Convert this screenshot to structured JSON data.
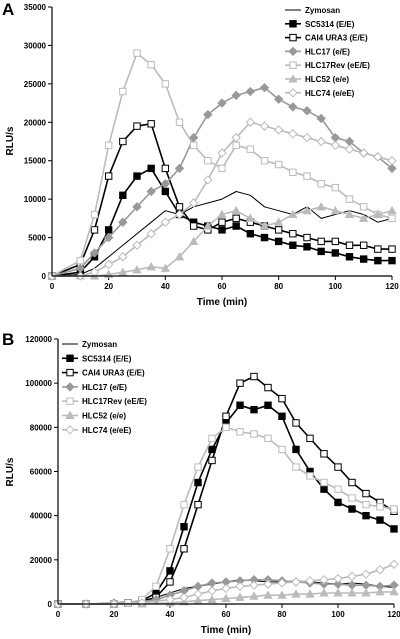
{
  "chart_data": [
    {
      "type": "line",
      "panel_label": "A",
      "xlabel": "Time (min)",
      "ylabel": "RLU/s",
      "xlim": [
        0,
        120
      ],
      "ylim": [
        0,
        35000
      ],
      "x_ticks": [
        0,
        20,
        40,
        60,
        80,
        100,
        120
      ],
      "y_ticks": [
        0,
        5000,
        10000,
        15000,
        20000,
        25000,
        30000,
        35000
      ],
      "x_tick_labels": [
        "0",
        "20",
        "40",
        "60",
        "80",
        "100",
        "120"
      ],
      "y_tick_labels": [
        "0",
        "5000",
        "10000",
        "15000",
        "20000",
        "25000",
        "30000",
        "35000"
      ],
      "grid": false,
      "legend_position": "top-right",
      "series": [
        {
          "name": "Zymosan",
          "color": "#000000",
          "marker": "none",
          "x": [
            0,
            10,
            15,
            20,
            25,
            30,
            35,
            40,
            45,
            50,
            55,
            60,
            65,
            70,
            75,
            80,
            85,
            90,
            95,
            100,
            105,
            110,
            115,
            120
          ],
          "y": [
            0,
            200,
            1000,
            2500,
            4000,
            5500,
            7000,
            8500,
            8000,
            9000,
            9500,
            10000,
            11000,
            10500,
            9000,
            8500,
            8000,
            9000,
            7500,
            8000,
            8500,
            8000,
            7000,
            7500
          ]
        },
        {
          "name": "SC5314 (E/E)",
          "color": "#000000",
          "marker": "filled-square",
          "x": [
            0,
            10,
            15,
            20,
            25,
            30,
            35,
            40,
            45,
            50,
            55,
            60,
            65,
            70,
            75,
            80,
            85,
            90,
            95,
            100,
            105,
            110,
            115,
            120
          ],
          "y": [
            0,
            500,
            2500,
            6000,
            10500,
            13000,
            14000,
            11000,
            8000,
            7000,
            6500,
            6000,
            6500,
            5500,
            5000,
            4500,
            4000,
            3800,
            3200,
            3000,
            2500,
            2200,
            2000,
            2000
          ]
        },
        {
          "name": "CAI4 URA3 (E/E)",
          "color": "#000000",
          "marker": "open-square",
          "x": [
            0,
            10,
            15,
            20,
            25,
            30,
            35,
            40,
            45,
            50,
            55,
            60,
            65,
            70,
            75,
            80,
            85,
            90,
            95,
            100,
            105,
            110,
            115,
            120
          ],
          "y": [
            0,
            1500,
            6000,
            13000,
            17500,
            19500,
            19800,
            14000,
            9000,
            6500,
            6000,
            7000,
            7500,
            7000,
            6500,
            6000,
            5500,
            5000,
            4500,
            4500,
            4000,
            4000,
            3500,
            3500
          ]
        },
        {
          "name": "HLC17 (e/E)",
          "color": "#999999",
          "marker": "filled-diamond",
          "x": [
            0,
            10,
            15,
            20,
            25,
            30,
            35,
            40,
            45,
            50,
            55,
            60,
            65,
            70,
            75,
            80,
            85,
            90,
            95,
            100,
            105,
            110,
            115,
            120
          ],
          "y": [
            0,
            1000,
            3000,
            5000,
            7000,
            9000,
            11000,
            12000,
            14000,
            18000,
            21000,
            22500,
            23500,
            24000,
            24500,
            23000,
            22000,
            21500,
            20500,
            18000,
            17500,
            16000,
            15500,
            14000
          ]
        },
        {
          "name": "HLC17Rev (eE/E)",
          "color": "#bbbbbb",
          "marker": "open-square",
          "x": [
            0,
            10,
            15,
            20,
            25,
            30,
            35,
            40,
            45,
            50,
            55,
            60,
            65,
            70,
            75,
            80,
            85,
            90,
            95,
            100,
            105,
            110,
            115,
            120
          ],
          "y": [
            0,
            2000,
            8000,
            17000,
            24000,
            29000,
            27500,
            25000,
            20000,
            17000,
            15000,
            14000,
            17000,
            16500,
            15000,
            14500,
            13500,
            13000,
            12000,
            11500,
            10000,
            9000,
            8000,
            7500
          ]
        },
        {
          "name": "HLC52 (e/e)",
          "color": "#bbbbbb",
          "marker": "filled-triangle",
          "x": [
            0,
            10,
            15,
            20,
            25,
            30,
            35,
            40,
            45,
            50,
            55,
            60,
            65,
            70,
            75,
            80,
            85,
            90,
            95,
            100,
            105,
            110,
            115,
            120
          ],
          "y": [
            0,
            0,
            0,
            200,
            500,
            800,
            1200,
            1000,
            2500,
            4500,
            6500,
            8000,
            8500,
            7500,
            6500,
            7000,
            8000,
            8500,
            9000,
            8500,
            8000,
            7500,
            8000,
            8500
          ]
        },
        {
          "name": "HLC74 (e/eE)",
          "color": "#bbbbbb",
          "marker": "open-diamond",
          "x": [
            0,
            10,
            15,
            20,
            25,
            30,
            35,
            40,
            45,
            50,
            55,
            60,
            65,
            70,
            75,
            80,
            85,
            90,
            95,
            100,
            105,
            110,
            115,
            120
          ],
          "y": [
            0,
            0,
            500,
            1500,
            2500,
            4000,
            5500,
            7000,
            8000,
            9500,
            12500,
            16000,
            18000,
            20000,
            19500,
            19000,
            18500,
            18000,
            17500,
            17000,
            16500,
            16000,
            15500,
            15000
          ]
        }
      ]
    },
    {
      "type": "line",
      "panel_label": "B",
      "xlabel": "Time (min)",
      "ylabel": "RLU/s",
      "xlim": [
        0,
        120
      ],
      "ylim": [
        0,
        120000
      ],
      "x_ticks": [
        0,
        20,
        40,
        60,
        80,
        100,
        120
      ],
      "y_ticks": [
        0,
        20000,
        40000,
        60000,
        80000,
        100000,
        120000
      ],
      "x_tick_labels": [
        "0",
        "20",
        "40",
        "60",
        "80",
        "100",
        "120"
      ],
      "y_tick_labels": [
        "0",
        "20000",
        "40000",
        "60000",
        "80000",
        "100000",
        "120000"
      ],
      "grid": false,
      "legend_position": "top-left",
      "series": [
        {
          "name": "Zymosan",
          "color": "#000000",
          "marker": "none",
          "x": [
            0,
            10,
            20,
            30,
            35,
            40,
            45,
            50,
            55,
            60,
            65,
            70,
            75,
            80,
            85,
            90,
            95,
            100,
            105,
            110,
            115,
            120
          ],
          "y": [
            0,
            0,
            500,
            1500,
            3000,
            5000,
            7000,
            8000,
            9000,
            10000,
            11000,
            10500,
            10000,
            10000,
            10500,
            10000,
            9500,
            9000,
            9500,
            9000,
            8000,
            7500
          ]
        },
        {
          "name": "SC5314 (E/E)",
          "color": "#000000",
          "marker": "filled-square",
          "x": [
            0,
            10,
            20,
            25,
            30,
            35,
            40,
            45,
            50,
            55,
            60,
            65,
            70,
            75,
            80,
            85,
            90,
            95,
            100,
            105,
            110,
            115,
            120
          ],
          "y": [
            0,
            0,
            0,
            500,
            1500,
            5000,
            15000,
            35000,
            55000,
            70000,
            82000,
            90000,
            88000,
            90000,
            85000,
            70000,
            60000,
            52000,
            46000,
            43000,
            40000,
            38000,
            34000
          ]
        },
        {
          "name": "CAI4 URA3 (E/E)",
          "color": "#000000",
          "marker": "open-square",
          "x": [
            0,
            10,
            20,
            25,
            30,
            35,
            40,
            45,
            50,
            55,
            60,
            65,
            70,
            75,
            80,
            85,
            90,
            95,
            100,
            105,
            110,
            115,
            120
          ],
          "y": [
            0,
            0,
            0,
            500,
            1000,
            3000,
            10000,
            25000,
            45000,
            65000,
            85000,
            100000,
            103000,
            98000,
            93000,
            82000,
            75000,
            68000,
            62000,
            55000,
            50000,
            46000,
            42000
          ]
        },
        {
          "name": "HLC17 (e/E)",
          "color": "#999999",
          "marker": "filled-diamond",
          "x": [
            0,
            10,
            20,
            30,
            35,
            40,
            45,
            50,
            55,
            60,
            65,
            70,
            75,
            80,
            85,
            90,
            95,
            100,
            105,
            110,
            115,
            120
          ],
          "y": [
            0,
            0,
            500,
            1000,
            2000,
            4000,
            6000,
            8000,
            9500,
            10000,
            10500,
            11000,
            11000,
            10500,
            10000,
            9500,
            9000,
            9000,
            8500,
            8500,
            8000,
            8500
          ]
        },
        {
          "name": "HLC17Rev (eE/E)",
          "color": "#bbbbbb",
          "marker": "open-square",
          "x": [
            0,
            10,
            20,
            25,
            30,
            35,
            40,
            45,
            50,
            55,
            60,
            65,
            70,
            75,
            80,
            85,
            90,
            95,
            100,
            105,
            110,
            115,
            120
          ],
          "y": [
            0,
            0,
            0,
            500,
            2000,
            8000,
            25000,
            45000,
            62000,
            75000,
            80000,
            78000,
            77000,
            75000,
            70000,
            62000,
            58000,
            55000,
            52000,
            48000,
            45000,
            44000,
            43000
          ]
        },
        {
          "name": "HLC52 (e/e)",
          "color": "#bbbbbb",
          "marker": "filled-triangle",
          "x": [
            0,
            10,
            20,
            30,
            40,
            45,
            50,
            55,
            60,
            65,
            70,
            75,
            80,
            85,
            90,
            95,
            100,
            105,
            110,
            115,
            120
          ],
          "y": [
            0,
            0,
            0,
            0,
            500,
            1000,
            1500,
            2000,
            2500,
            3000,
            3500,
            4000,
            4000,
            4500,
            4500,
            5000,
            5000,
            5000,
            5000,
            5500,
            5500
          ]
        },
        {
          "name": "HLC74 (e/eE)",
          "color": "#bbbbbb",
          "marker": "open-diamond",
          "x": [
            0,
            10,
            20,
            30,
            40,
            45,
            50,
            55,
            60,
            65,
            70,
            75,
            80,
            85,
            90,
            95,
            100,
            105,
            110,
            115,
            120
          ],
          "y": [
            0,
            0,
            0,
            500,
            2000,
            3000,
            4500,
            6000,
            7000,
            8000,
            8500,
            9000,
            9500,
            10000,
            10500,
            11000,
            11500,
            12500,
            13500,
            15500,
            18000
          ]
        }
      ]
    }
  ]
}
